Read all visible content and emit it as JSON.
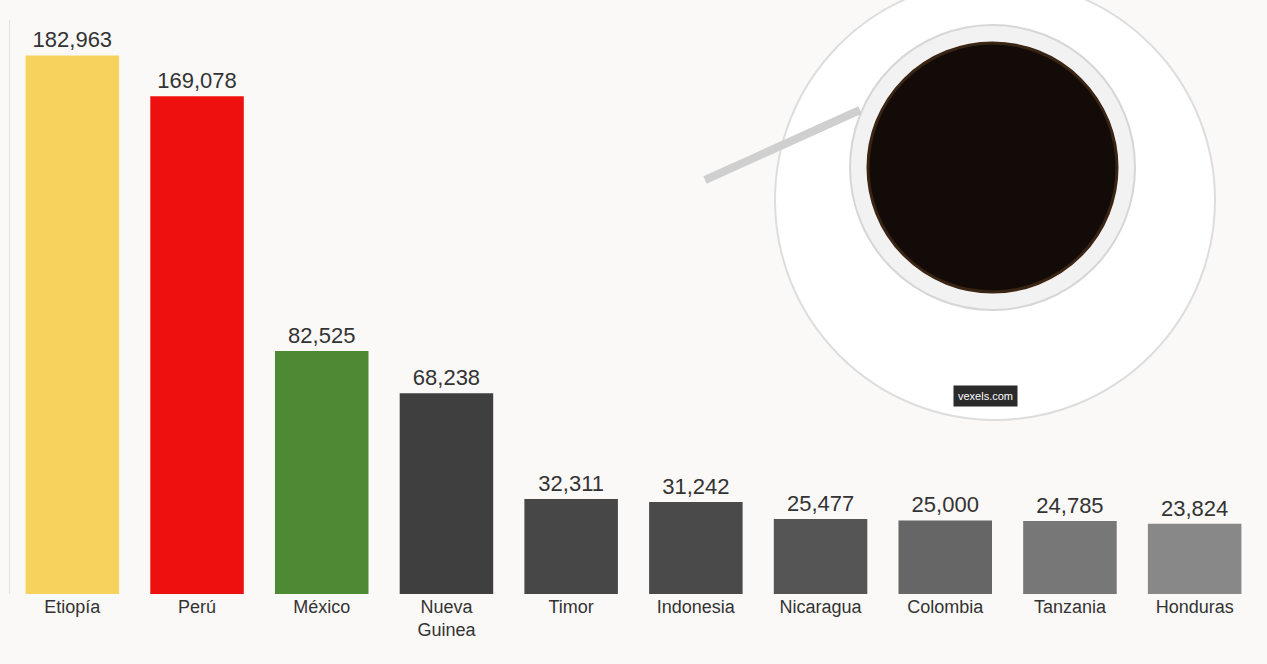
{
  "chart_data": {
    "type": "bar",
    "categories": [
      "Etiopía",
      "Perú",
      "México",
      "Nueva Guinea",
      "Timor",
      "Indonesia",
      "Nicaragua",
      "Colombia",
      "Tanzania",
      "Honduras"
    ],
    "values": [
      182963,
      169078,
      82525,
      68238,
      32311,
      31242,
      25477,
      25000,
      24785,
      23824
    ],
    "value_labels": [
      "182,963",
      "169,078",
      "82,525",
      "68,238",
      "32,311",
      "31,242",
      "25,477",
      "25,000",
      "24,785",
      "23,824"
    ],
    "colors": [
      "#f7d35e",
      "#ee0f0f",
      "#4e8a34",
      "#3f3f3f",
      "#474747",
      "#4a4a4a",
      "#555555",
      "#666666",
      "#777777",
      "#888888"
    ],
    "ylim": [
      0,
      195000
    ],
    "grid": false,
    "data_labels": true,
    "tick_labels": "x",
    "annotations": [
      "vexels.com"
    ]
  }
}
